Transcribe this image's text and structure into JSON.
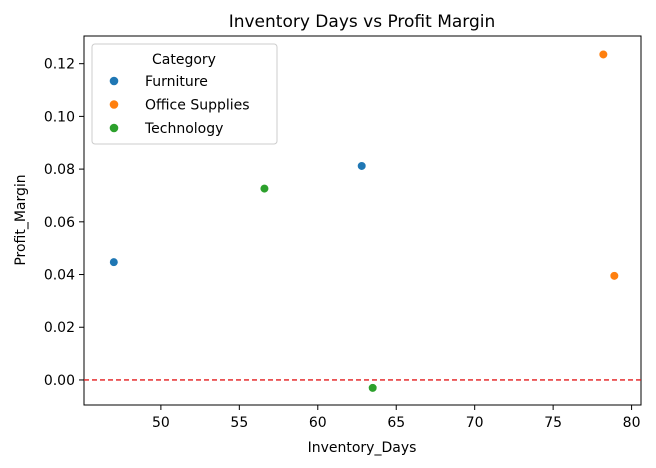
{
  "chart_data": {
    "type": "scatter",
    "title": "Inventory Days vs Profit Margin",
    "xlabel": "Inventory_Days",
    "ylabel": "Profit_Margin",
    "xlim": [
      45.1,
      80.6
    ],
    "ylim": [
      -0.0095,
      0.1305
    ],
    "xticks": [
      50,
      55,
      60,
      65,
      70,
      75,
      80
    ],
    "xtick_labels": [
      "50",
      "55",
      "60",
      "65",
      "70",
      "75",
      "80"
    ],
    "yticks": [
      0.0,
      0.02,
      0.04,
      0.06,
      0.08,
      0.1,
      0.12
    ],
    "ytick_labels": [
      "0.00",
      "0.02",
      "0.04",
      "0.06",
      "0.08",
      "0.10",
      "0.12"
    ],
    "grid": false,
    "legend": {
      "title": "Category",
      "placement": "top-left"
    },
    "reference_line": {
      "y": 0,
      "color": "#e31a1c",
      "style": "dashed"
    },
    "series": [
      {
        "name": "Furniture",
        "color": "#1f77b4",
        "points": [
          {
            "x": 47.0,
            "y": 0.0447
          },
          {
            "x": 62.8,
            "y": 0.0812
          }
        ]
      },
      {
        "name": "Office Supplies",
        "color": "#ff7f0e",
        "points": [
          {
            "x": 78.2,
            "y": 0.1235
          },
          {
            "x": 78.9,
            "y": 0.0395
          }
        ]
      },
      {
        "name": "Technology",
        "color": "#2ca02c",
        "points": [
          {
            "x": 56.6,
            "y": 0.0726
          },
          {
            "x": 63.5,
            "y": -0.003
          }
        ]
      }
    ]
  }
}
